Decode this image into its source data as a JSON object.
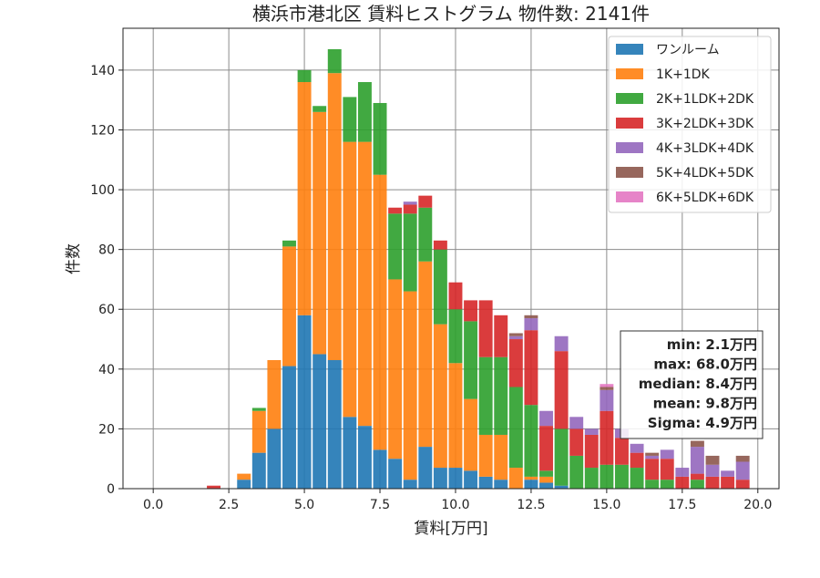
{
  "chart_data": {
    "type": "bar",
    "title": "横浜市港北区 賃料ヒストグラム  物件数: 2141件",
    "xlabel": "賃料[万円]",
    "ylabel": "件数",
    "xlim": [
      -1.0,
      20.7
    ],
    "ylim": [
      0,
      154
    ],
    "xticks": [
      0.0,
      2.5,
      5.0,
      7.5,
      10.0,
      12.5,
      15.0,
      17.5,
      20.0
    ],
    "xtick_labels": [
      "0.0",
      "2.5",
      "5.0",
      "7.5",
      "10.0",
      "12.5",
      "15.0",
      "17.5",
      "20.0"
    ],
    "yticks": [
      0,
      20,
      40,
      60,
      80,
      100,
      120,
      140
    ],
    "ytick_labels": [
      "0",
      "20",
      "40",
      "60",
      "80",
      "100",
      "120",
      "140"
    ],
    "grid": true,
    "legend_position": "top-right",
    "bin_width": 0.5,
    "bin_starts": [
      1.75,
      2.75,
      3.25,
      3.75,
      4.25,
      4.75,
      5.25,
      5.75,
      6.25,
      6.75,
      7.25,
      7.75,
      8.25,
      8.75,
      9.25,
      9.75,
      10.25,
      10.75,
      11.25,
      11.75,
      12.25,
      12.75,
      13.25,
      13.75,
      14.25,
      14.75,
      15.25,
      15.75,
      16.25,
      16.75,
      17.25,
      17.75,
      18.25,
      18.75,
      19.25
    ],
    "series": [
      {
        "name": "ワンルーム",
        "color": "#1f77b4",
        "values": [
          0,
          3,
          12,
          20,
          41,
          58,
          45,
          43,
          24,
          21,
          13,
          10,
          3,
          14,
          7,
          7,
          6,
          4,
          3,
          0,
          3,
          2,
          1,
          0,
          0,
          0,
          0,
          0,
          0,
          0,
          0,
          0,
          0,
          0,
          0
        ]
      },
      {
        "name": "1K+1DK",
        "color": "#ff7f0e",
        "values": [
          0,
          2,
          14,
          23,
          40,
          78,
          81,
          96,
          92,
          95,
          92,
          60,
          63,
          62,
          48,
          35,
          24,
          14,
          15,
          7,
          1,
          2,
          0,
          0,
          0,
          0,
          0,
          0,
          0,
          0,
          0,
          0,
          0,
          0,
          0
        ]
      },
      {
        "name": "2K+1LDK+2DK",
        "color": "#2ca02c",
        "values": [
          0,
          0,
          1,
          0,
          2,
          4,
          2,
          8,
          15,
          20,
          24,
          22,
          26,
          18,
          25,
          18,
          26,
          26,
          26,
          27,
          24,
          2,
          19,
          11,
          7,
          8,
          8,
          7,
          3,
          3,
          0,
          3,
          0,
          0,
          0
        ]
      },
      {
        "name": "3K+2LDK+3DK",
        "color": "#d62728",
        "values": [
          1,
          0,
          0,
          0,
          0,
          0,
          0,
          0,
          0,
          0,
          0,
          2,
          3,
          4,
          3,
          9,
          7,
          19,
          14,
          16,
          25,
          15,
          26,
          9,
          11,
          18,
          9,
          5,
          7,
          7,
          4,
          2,
          4,
          4,
          3
        ]
      },
      {
        "name": "4K+3LDK+4DK",
        "color": "#9467bd",
        "values": [
          0,
          0,
          0,
          0,
          0,
          0,
          0,
          0,
          0,
          0,
          0,
          0,
          1,
          0,
          0,
          0,
          0,
          0,
          0,
          1,
          4,
          5,
          5,
          4,
          2,
          7,
          3,
          3,
          1,
          3,
          3,
          9,
          4,
          2,
          6
        ]
      },
      {
        "name": "5K+4LDK+5DK",
        "color": "#8c564b",
        "values": [
          0,
          0,
          0,
          0,
          0,
          0,
          0,
          0,
          0,
          0,
          0,
          0,
          0,
          0,
          0,
          0,
          0,
          0,
          0,
          1,
          1,
          0,
          0,
          0,
          0,
          1,
          0,
          0,
          1,
          0,
          0,
          2,
          3,
          0,
          2
        ]
      },
      {
        "name": "6K+5LDK+6DK",
        "color": "#e377c2",
        "values": [
          0,
          0,
          0,
          0,
          0,
          0,
          0,
          0,
          0,
          0,
          0,
          0,
          0,
          0,
          0,
          0,
          0,
          0,
          0,
          0,
          0,
          0,
          0,
          0,
          0,
          1,
          0,
          0,
          0,
          0,
          0,
          0,
          0,
          0,
          0
        ]
      }
    ],
    "stats": [
      "min: 2.1万円",
      "max: 68.0万円",
      "median: 8.4万円",
      "mean: 9.8万円",
      "Sigma: 4.9万円"
    ]
  }
}
